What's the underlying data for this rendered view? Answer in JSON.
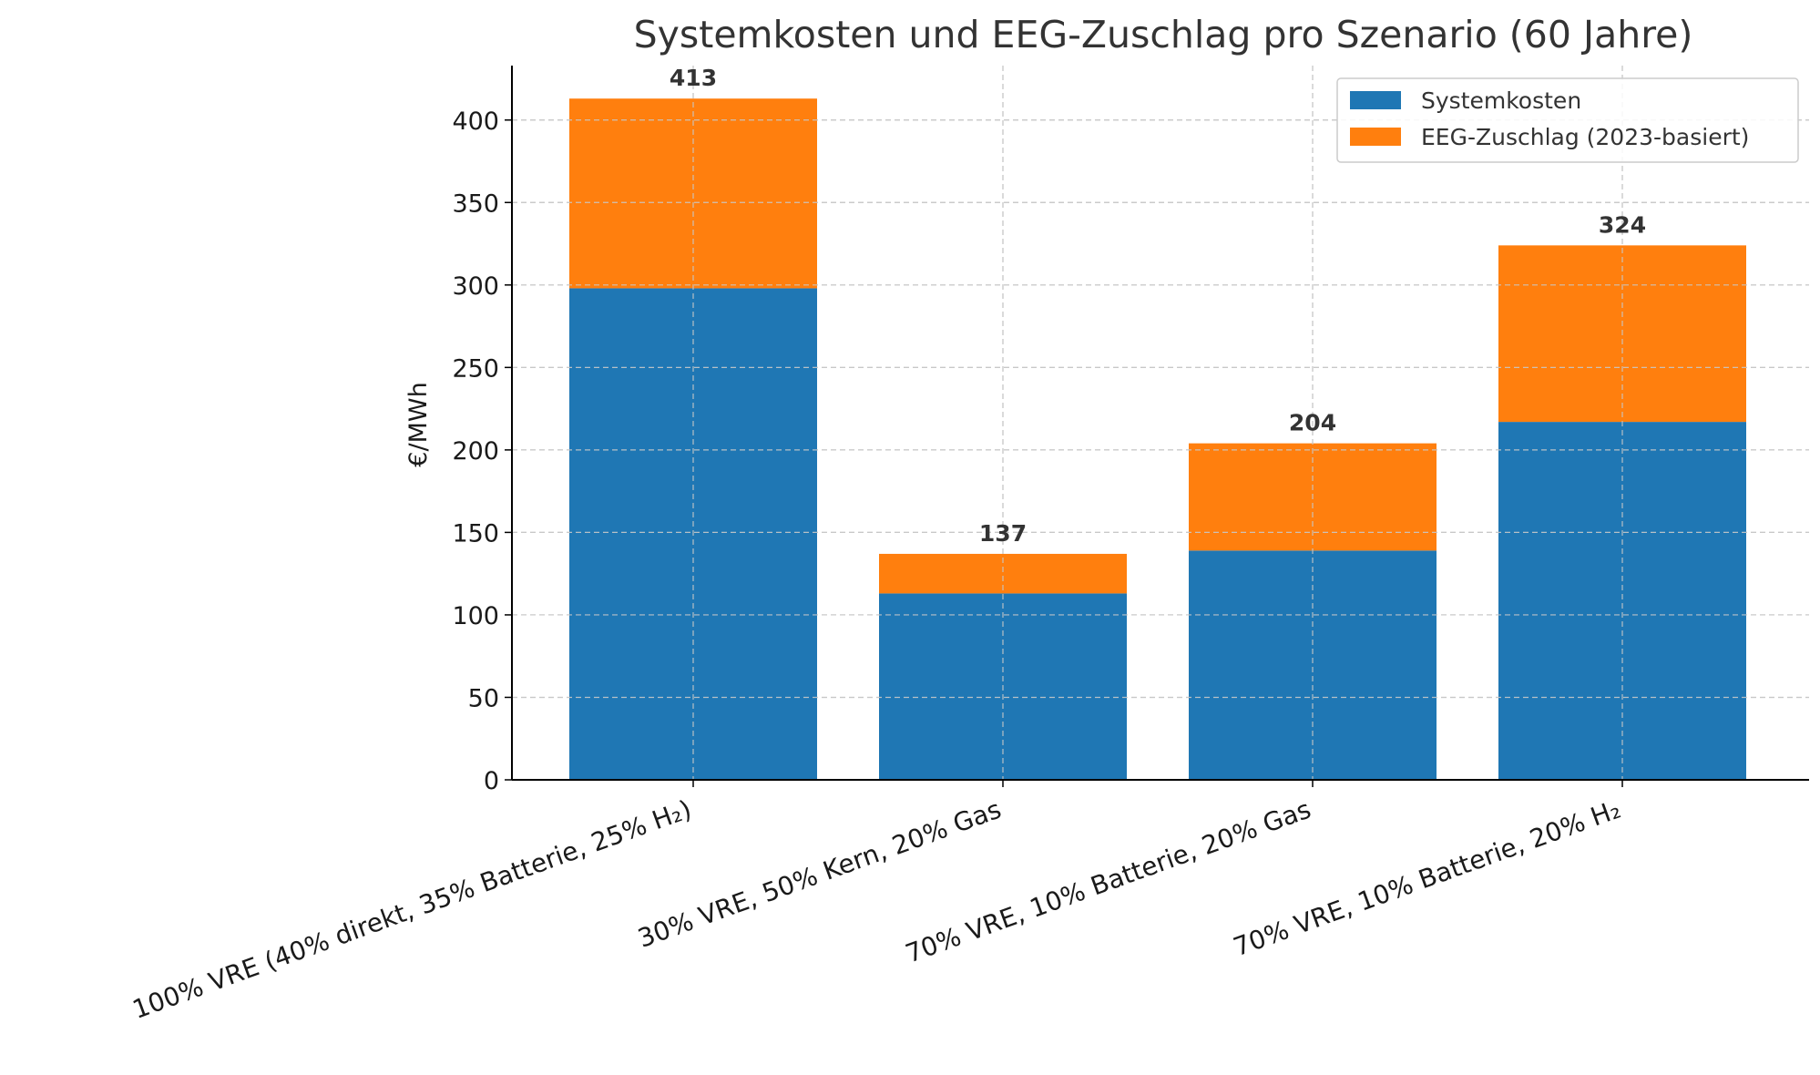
{
  "chart_data": {
    "type": "bar",
    "stacked": true,
    "title": "Systemkosten und EEG-Zuschlag pro Szenario (60 Jahre)",
    "xlabel": "",
    "ylabel": "€/MWh",
    "ylim": [
      0,
      433
    ],
    "yticks": [
      0,
      50,
      100,
      150,
      200,
      250,
      300,
      350,
      400
    ],
    "grid": true,
    "legend_position": "top-right",
    "categories": [
      "100% VRE (40% direkt, 35% Batterie, 25% H₂)",
      "30% VRE, 50% Kern, 20% Gas",
      "70% VRE, 10% Batterie, 20% Gas",
      "70% VRE, 10% Batterie, 20% H₂"
    ],
    "series": [
      {
        "name": "Systemkosten",
        "color": "#1f77b4",
        "values": [
          298,
          113,
          139,
          217
        ]
      },
      {
        "name": "EEG-Zuschlag (2023-basiert)",
        "color": "#ff7f0e",
        "values": [
          115,
          24,
          65,
          107
        ]
      }
    ],
    "totals": [
      413,
      137,
      204,
      324
    ],
    "total_labels": [
      "413",
      "137",
      "204",
      "324"
    ]
  }
}
